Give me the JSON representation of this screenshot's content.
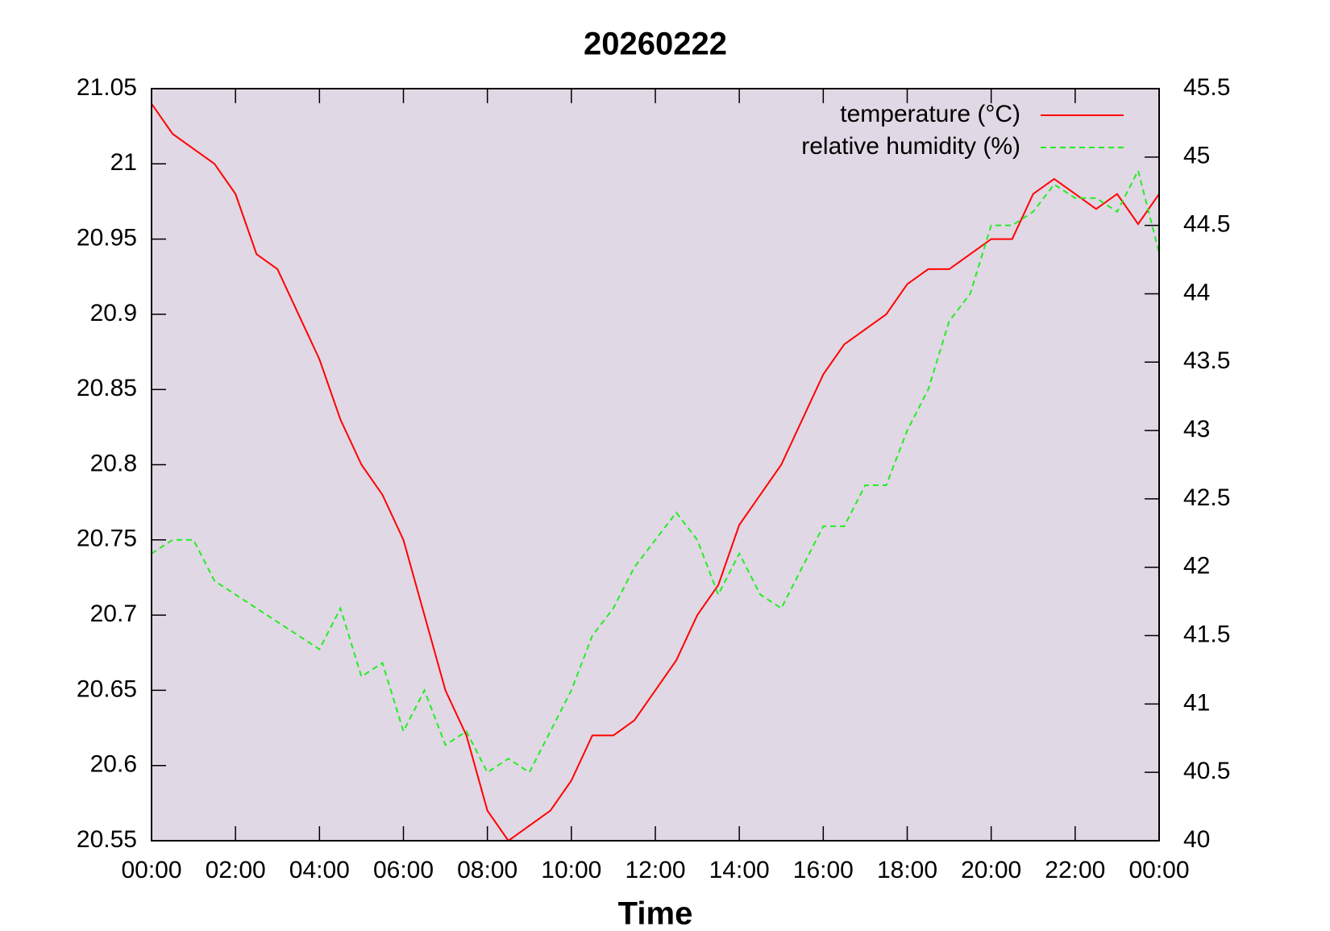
{
  "chart_data": {
    "type": "line",
    "title": "20260222",
    "xlabel": "Time",
    "x": [
      0,
      0.5,
      1,
      1.5,
      2,
      2.5,
      3,
      3.5,
      4,
      4.5,
      5,
      5.5,
      6,
      6.5,
      7,
      7.5,
      8,
      8.5,
      9,
      9.5,
      10,
      10.5,
      11,
      11.5,
      12,
      12.5,
      13,
      13.5,
      14,
      14.5,
      15,
      15.5,
      16,
      16.5,
      17,
      17.5,
      18,
      18.5,
      19,
      19.5,
      20,
      20.5,
      21,
      21.5,
      22,
      22.5,
      23,
      23.5,
      24
    ],
    "xlim": [
      0,
      24
    ],
    "xticks": [
      {
        "value": 0,
        "label": "00:00"
      },
      {
        "value": 2,
        "label": "02:00"
      },
      {
        "value": 4,
        "label": "04:00"
      },
      {
        "value": 6,
        "label": "06:00"
      },
      {
        "value": 8,
        "label": "08:00"
      },
      {
        "value": 10,
        "label": "10:00"
      },
      {
        "value": 12,
        "label": "12:00"
      },
      {
        "value": 14,
        "label": "14:00"
      },
      {
        "value": 16,
        "label": "16:00"
      },
      {
        "value": 18,
        "label": "18:00"
      },
      {
        "value": 20,
        "label": "20:00"
      },
      {
        "value": 22,
        "label": "22:00"
      },
      {
        "value": 24,
        "label": "00:00"
      }
    ],
    "ylim": [
      20.55,
      21.05
    ],
    "yticks": [
      20.55,
      20.6,
      20.65,
      20.7,
      20.75,
      20.8,
      20.85,
      20.9,
      20.95,
      21,
      21.05
    ],
    "y2lim": [
      40,
      45.5
    ],
    "y2ticks": [
      40,
      40.5,
      41,
      41.5,
      42,
      42.5,
      43,
      43.5,
      44,
      44.5,
      45,
      45.5
    ],
    "legend": "upper right",
    "background": "#e0d8e4",
    "series": [
      {
        "name": "temperature (°C)",
        "color": "#ff0000",
        "dash": false,
        "values": [
          21.04,
          21.02,
          21.01,
          21.0,
          20.98,
          20.94,
          20.93,
          20.9,
          20.87,
          20.83,
          20.8,
          20.78,
          20.75,
          20.7,
          20.65,
          20.62,
          20.57,
          20.55,
          20.56,
          20.57,
          20.59,
          20.62,
          20.62,
          20.63,
          20.65,
          20.67,
          20.7,
          20.72,
          20.76,
          20.78,
          20.8,
          20.83,
          20.86,
          20.88,
          20.89,
          20.9,
          20.92,
          20.93,
          20.93,
          20.94,
          20.95,
          20.95,
          20.98,
          20.99,
          20.98,
          20.97,
          20.98,
          20.96,
          20.98
        ]
      },
      {
        "name": "relative humidity (%)",
        "color": "#22ee22",
        "dash": true,
        "axis": "y2",
        "values": [
          42.1,
          42.2,
          42.2,
          41.9,
          41.8,
          41.7,
          41.6,
          41.5,
          41.4,
          41.7,
          41.2,
          41.3,
          40.8,
          41.1,
          40.7,
          40.8,
          40.5,
          40.6,
          40.5,
          40.8,
          41.1,
          41.5,
          41.7,
          42.0,
          42.2,
          42.4,
          42.2,
          41.8,
          42.1,
          41.8,
          41.7,
          42.0,
          42.3,
          42.3,
          42.6,
          42.6,
          43.0,
          43.3,
          43.8,
          44.0,
          44.5,
          44.5,
          44.6,
          44.8,
          44.7,
          44.7,
          44.6,
          44.9,
          44.3
        ]
      }
    ]
  }
}
